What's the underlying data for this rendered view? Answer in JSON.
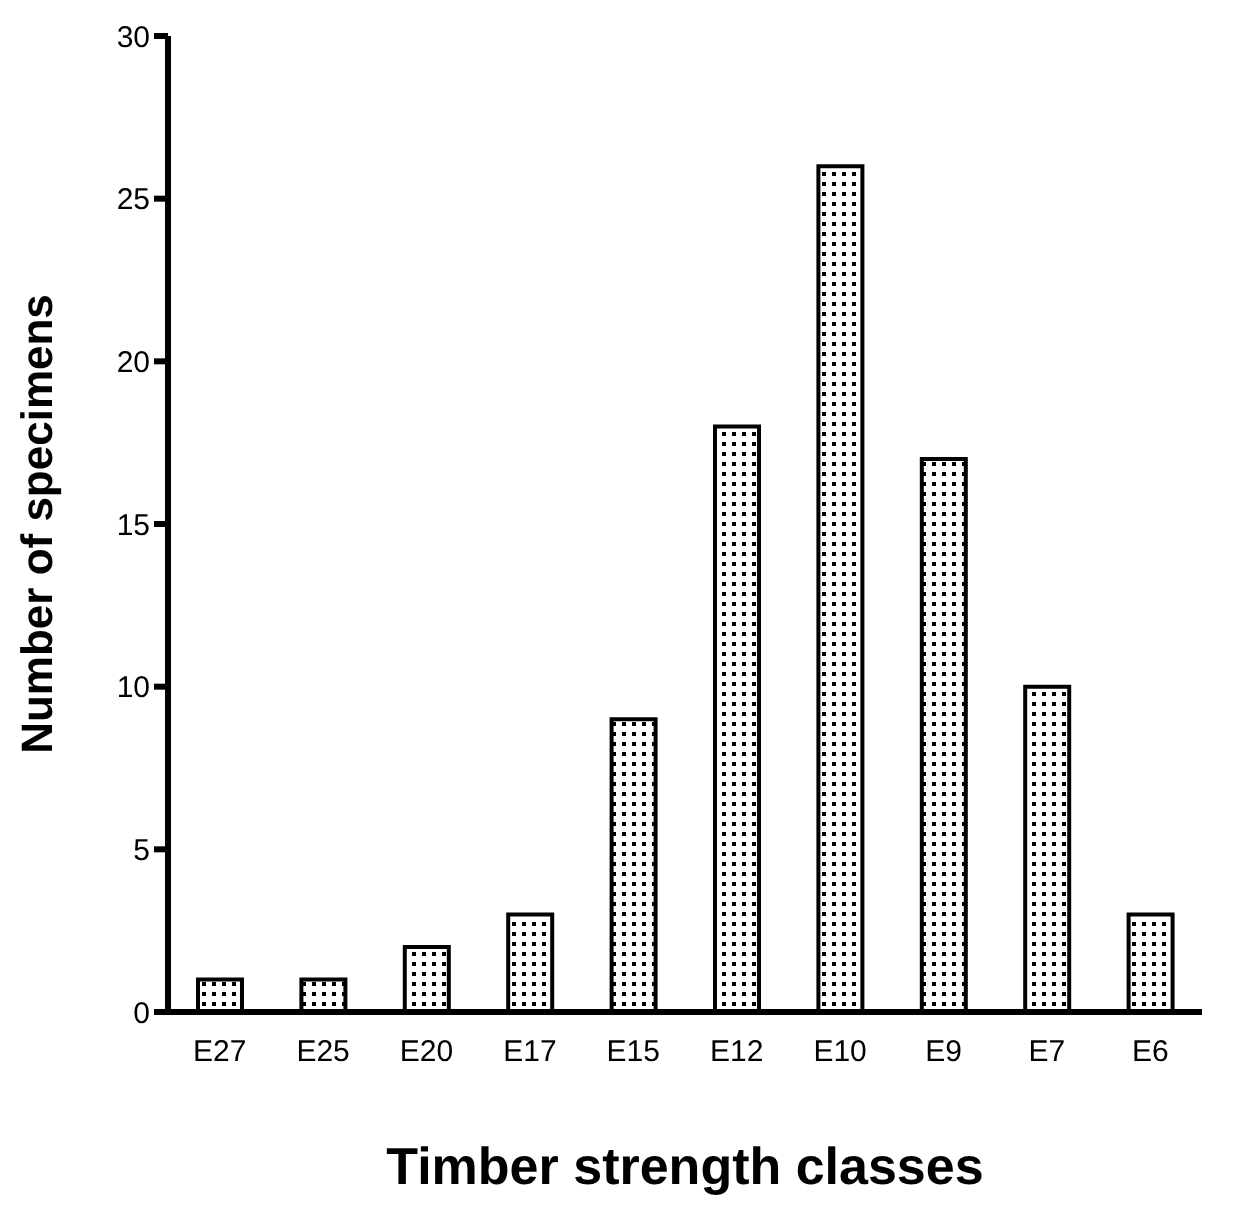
{
  "chart_data": {
    "type": "bar",
    "xlabel": "Timber strength classes",
    "ylabel": "Number of specimens",
    "categories": [
      "E27",
      "E25",
      "E20",
      "E17",
      "E15",
      "E12",
      "E10",
      "E9",
      "E7",
      "E6"
    ],
    "values": [
      1,
      1,
      2,
      3,
      9,
      18,
      26,
      17,
      10,
      3
    ],
    "color": "#000000",
    "ylim": [
      0,
      30
    ],
    "yticks": [
      0,
      5,
      10,
      15,
      20,
      25,
      30
    ],
    "grid": false
  }
}
